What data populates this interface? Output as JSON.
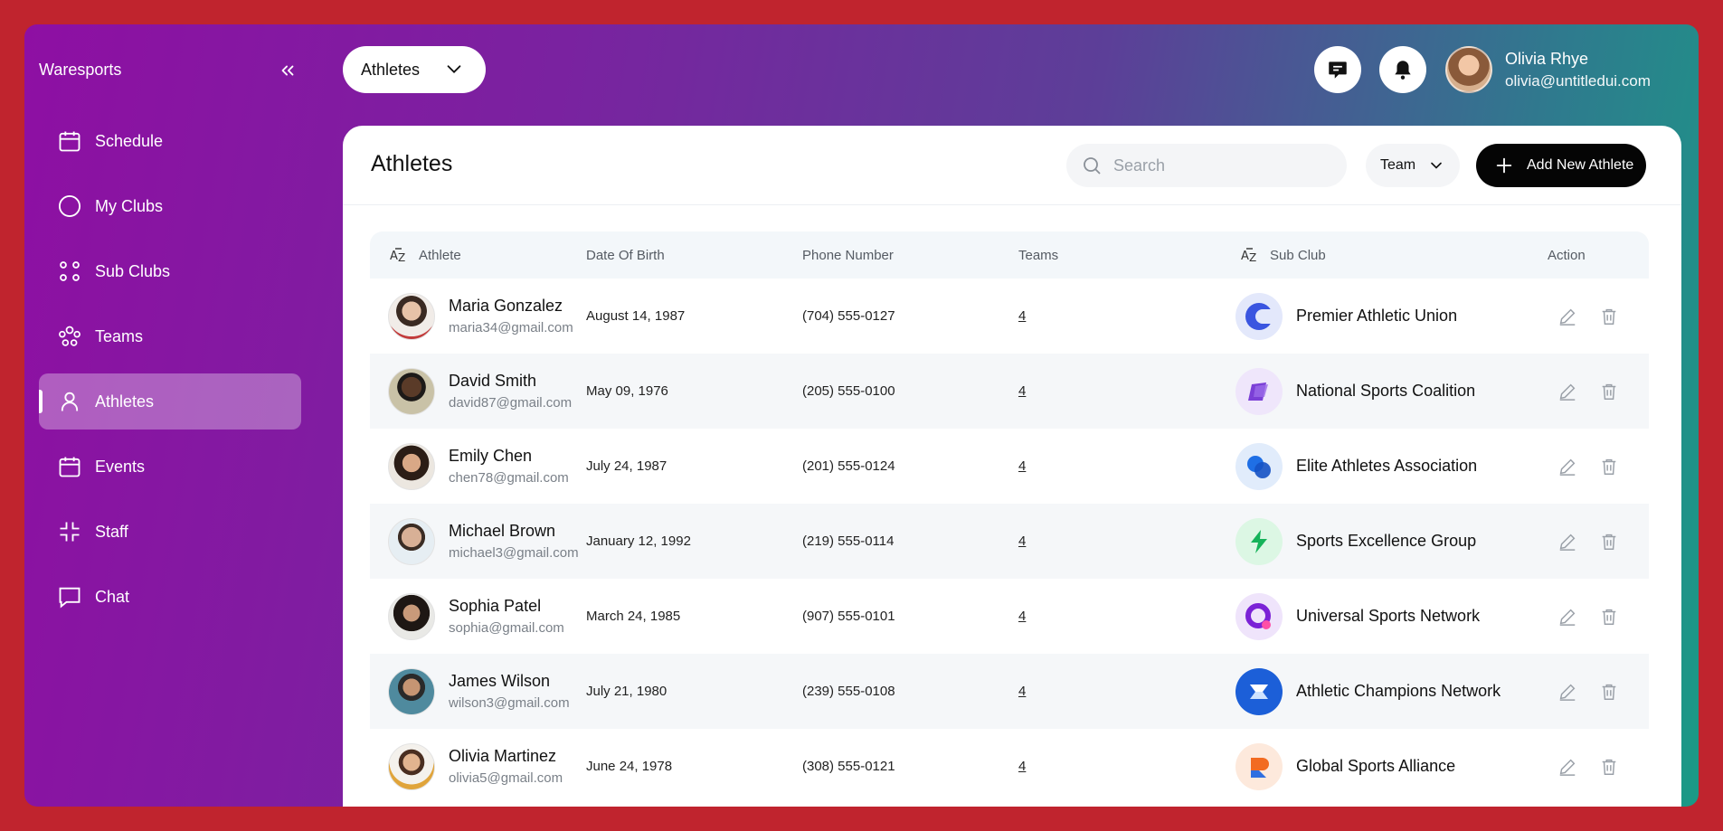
{
  "app": {
    "brand": "Waresports"
  },
  "sidebar": {
    "items": [
      {
        "label": "Schedule",
        "icon": "calendar-icon"
      },
      {
        "label": "My Clubs",
        "icon": "circle-icon"
      },
      {
        "label": "Sub Clubs",
        "icon": "dots-grid-icon"
      },
      {
        "label": "Teams",
        "icon": "users-group-icon"
      },
      {
        "label": "Athletes",
        "icon": "user-icon",
        "active": true
      },
      {
        "label": "Events",
        "icon": "calendar-icon"
      },
      {
        "label": "Staff",
        "icon": "corners-icon"
      },
      {
        "label": "Chat",
        "icon": "chat-icon"
      }
    ]
  },
  "topbar": {
    "view_select": "Athletes",
    "user": {
      "name": "Olivia Rhye",
      "email": "olivia@untitledui.com"
    }
  },
  "page": {
    "title": "Athletes",
    "search_placeholder": "Search",
    "team_filter": "Team",
    "add_button": "Add New Athlete"
  },
  "table": {
    "headers": {
      "athlete": "Athlete",
      "dob": "Date Of Birth",
      "phone": "Phone Number",
      "teams": "Teams",
      "sub_club": "Sub Club",
      "action": "Action"
    },
    "rows": [
      {
        "name": "Maria Gonzalez",
        "email": "maria34@gmail.com",
        "dob": "August 14, 1987",
        "phone": "(704) 555-0127",
        "teams": "4",
        "club": "Premier Athletic Union"
      },
      {
        "name": "David Smith",
        "email": "david87@gmail.com",
        "dob": "May 09, 1976",
        "phone": "(205) 555-0100",
        "teams": "4",
        "club": "National Sports Coalition"
      },
      {
        "name": "Emily Chen",
        "email": "chen78@gmail.com",
        "dob": "July 24, 1987",
        "phone": "(201) 555-0124",
        "teams": "4",
        "club": "Elite Athletes Association"
      },
      {
        "name": "Michael Brown",
        "email": "michael3@gmail.com",
        "dob": "January 12, 1992",
        "phone": "(219) 555-0114",
        "teams": "4",
        "club": "Sports Excellence Group"
      },
      {
        "name": "Sophia Patel",
        "email": "sophia@gmail.com",
        "dob": "March 24, 1985",
        "phone": "(907) 555-0101",
        "teams": "4",
        "club": "Universal Sports Network"
      },
      {
        "name": "James Wilson",
        "email": "wilson3@gmail.com",
        "dob": "July 21, 1980",
        "phone": "(239) 555-0108",
        "teams": "4",
        "club": "Athletic Champions Network"
      },
      {
        "name": "Olivia Martinez",
        "email": "olivia5@gmail.com",
        "dob": "June 24, 1978",
        "phone": "(308) 555-0121",
        "teams": "4",
        "club": "Global Sports Alliance"
      }
    ]
  }
}
